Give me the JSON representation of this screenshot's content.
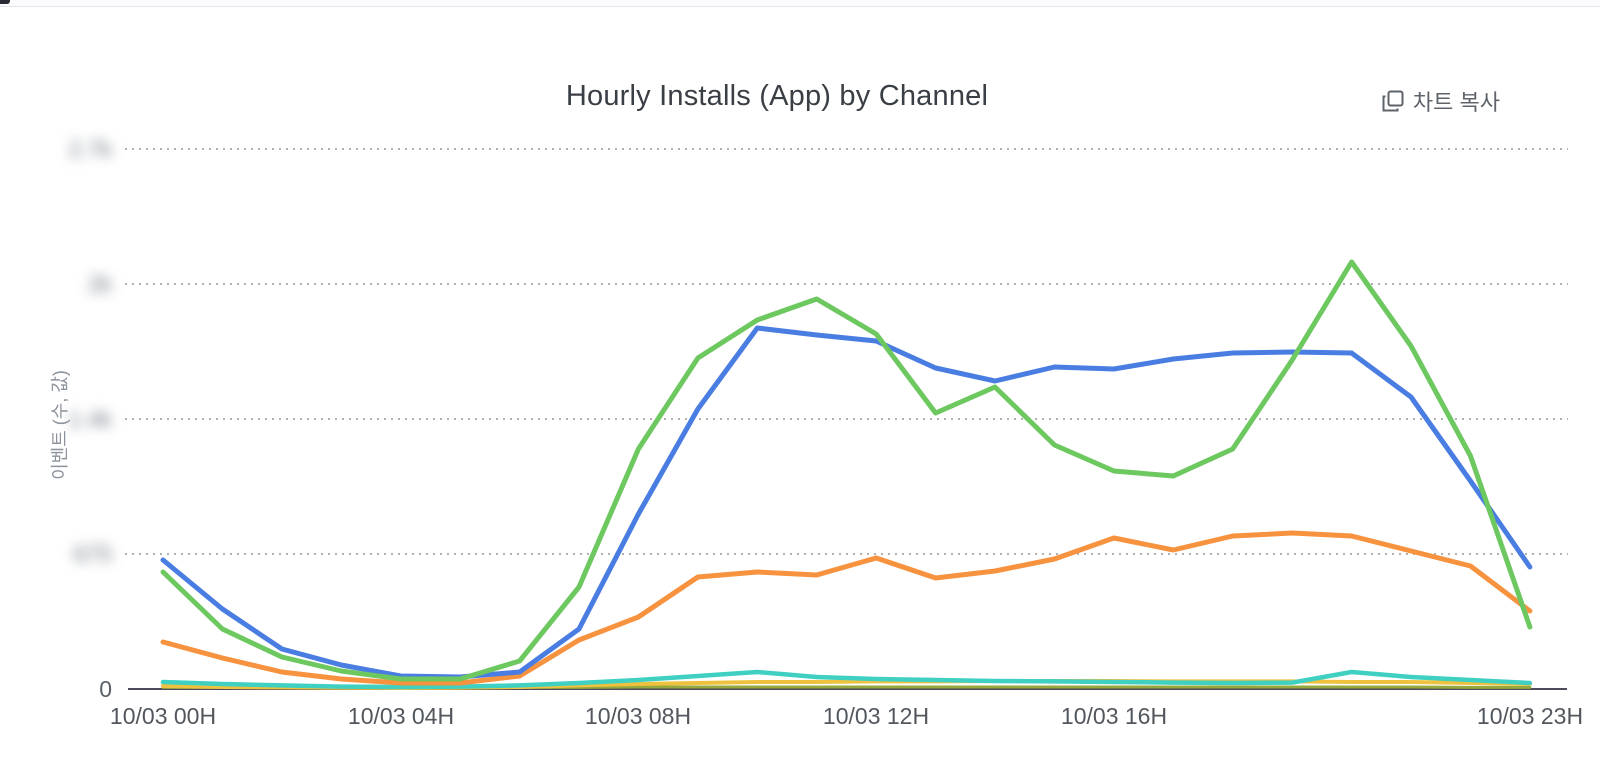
{
  "page": {
    "background_color": "#ffffff",
    "top_border_color": "#e4e4ec"
  },
  "header": {
    "title": "Hourly Installs (App) by Channel",
    "copy_button": {
      "icon": "copy-icon",
      "label": "차트 복사"
    }
  },
  "chart_data": {
    "type": "line",
    "title": "Hourly Installs (App) by Channel",
    "xlabel": "",
    "ylabel": "이벤트 (수, 값)",
    "x_unit": "hour of 10/03",
    "x": [
      0,
      1,
      2,
      3,
      4,
      5,
      6,
      7,
      8,
      9,
      10,
      11,
      12,
      13,
      14,
      15,
      16,
      17,
      18,
      19,
      20,
      21,
      22,
      23
    ],
    "x_tick_labels": [
      {
        "hour": 0,
        "label": "10/03 00H"
      },
      {
        "hour": 4,
        "label": "10/03 04H"
      },
      {
        "hour": 8,
        "label": "10/03 08H"
      },
      {
        "hour": 12,
        "label": "10/03 12H"
      },
      {
        "hour": 16,
        "label": "10/03 16H"
      },
      {
        "hour": 23,
        "label": "10/03 23H"
      }
    ],
    "y_ticks": [
      {
        "value": 2700,
        "label": "2.7k",
        "blurred": true
      },
      {
        "value": 2025,
        "label": "2k",
        "blurred": true
      },
      {
        "value": 1350,
        "label": "1.4k",
        "blurred": true
      },
      {
        "value": 675,
        "label": "675",
        "blurred": true
      },
      {
        "value": 0,
        "label": "0",
        "blurred": false
      }
    ],
    "ylim": [
      0,
      2700
    ],
    "grid": "horizontal-dotted",
    "legend": "none",
    "series": [
      {
        "name": "olive-channel",
        "color": "#97a83c",
        "width": 3,
        "values": [
          8,
          8,
          8,
          8,
          8,
          8,
          8,
          8,
          10,
          10,
          10,
          10,
          10,
          10,
          10,
          10,
          10,
          10,
          10,
          10,
          10,
          10,
          8,
          8
        ]
      },
      {
        "name": "yellow-channel",
        "color": "#eec23f",
        "width": 4,
        "values": [
          15,
          10,
          8,
          6,
          5,
          6,
          10,
          18,
          25,
          30,
          35,
          35,
          38,
          38,
          40,
          40,
          40,
          38,
          38,
          38,
          35,
          35,
          30,
          25
        ]
      },
      {
        "name": "teal-channel",
        "color": "#3fd0c2",
        "width": 4.5,
        "values": [
          35,
          25,
          18,
          12,
          10,
          12,
          18,
          30,
          45,
          65,
          85,
          60,
          50,
          45,
          40,
          38,
          35,
          32,
          30,
          32,
          85,
          60,
          45,
          30
        ]
      },
      {
        "name": "orange-channel",
        "color": "#f7923f",
        "width": 5,
        "values": [
          235,
          155,
          85,
          50,
          30,
          30,
          65,
          245,
          360,
          560,
          585,
          570,
          655,
          555,
          590,
          650,
          755,
          695,
          765,
          780,
          765,
          690,
          615,
          390
        ]
      },
      {
        "name": "blue-channel",
        "color": "#4a7de2",
        "width": 5,
        "values": [
          645,
          400,
          200,
          120,
          65,
          60,
          85,
          300,
          875,
          1400,
          1805,
          1770,
          1740,
          1605,
          1540,
          1610,
          1600,
          1650,
          1680,
          1685,
          1680,
          1460,
          1040,
          610
        ]
      },
      {
        "name": "green-channel",
        "color": "#6cc85f",
        "width": 5,
        "values": [
          585,
          300,
          160,
          90,
          50,
          50,
          140,
          510,
          1200,
          1655,
          1845,
          1950,
          1775,
          1380,
          1510,
          1220,
          1090,
          1065,
          1200,
          1645,
          2135,
          1715,
          1165,
          310
        ]
      }
    ],
    "axis_colors": {
      "baseline": "#4c4c5c",
      "gridline": "#b0b0b0",
      "tick_label": "#52575d"
    }
  }
}
